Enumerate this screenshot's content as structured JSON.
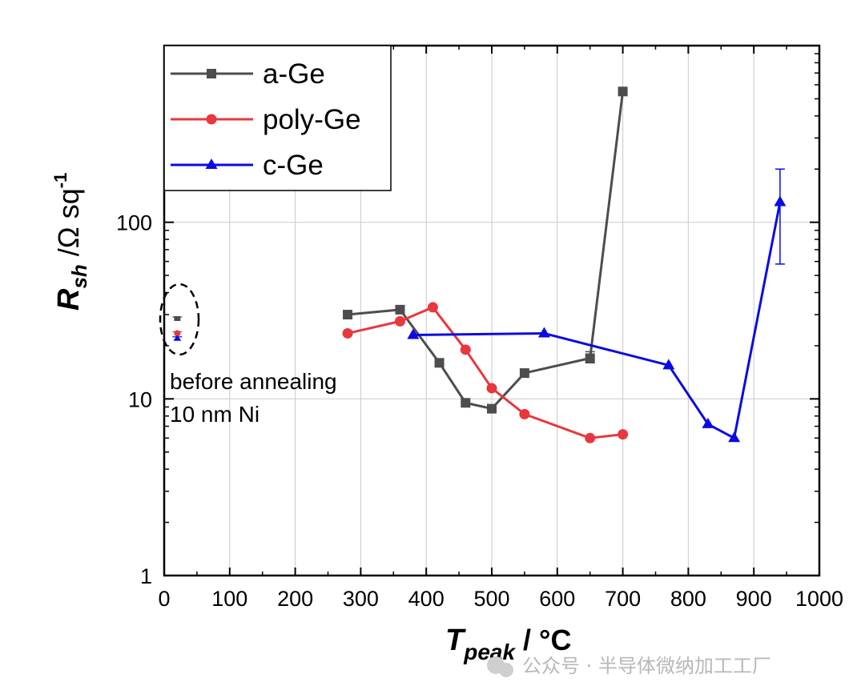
{
  "chart_data": {
    "type": "line",
    "x_axis": {
      "label_main": "T",
      "label_sub": "peak",
      "label_unit": " / °C",
      "range": [
        0,
        1000
      ],
      "ticks": [
        0,
        100,
        200,
        300,
        400,
        500,
        600,
        700,
        800,
        900,
        1000
      ]
    },
    "y_axis": {
      "label_main": "R",
      "label_sub": "sh",
      "label_unit": " /Ω sq",
      "label_exp": "-1",
      "scale": "log",
      "range": [
        1,
        1000
      ],
      "ticks": [
        1,
        10,
        100
      ],
      "tick_labels": [
        "1",
        "10",
        "100"
      ]
    },
    "grid": true,
    "legend_position": "top-left",
    "series": [
      {
        "name": "a-Ge",
        "color": "#4d4d4d",
        "marker": "square",
        "x": [
          280,
          360,
          420,
          460,
          500,
          550,
          650,
          700
        ],
        "y": [
          30,
          32,
          16,
          9.5,
          8.8,
          14,
          17,
          550
        ],
        "errors": [
          null,
          null,
          null,
          null,
          null,
          null,
          [
            16,
            18.5
          ],
          null
        ]
      },
      {
        "name": "poly-Ge",
        "color": "#e8383d",
        "marker": "circle",
        "x": [
          280,
          360,
          410,
          460,
          500,
          550,
          650,
          700
        ],
        "y": [
          23.5,
          27.5,
          33,
          19,
          11.5,
          8.2,
          6,
          6.3
        ],
        "errors": [
          null,
          null,
          null,
          null,
          null,
          null,
          null,
          null
        ]
      },
      {
        "name": "c-Ge",
        "color": "#0a0ae6",
        "marker": "triangle",
        "x": [
          380,
          580,
          770,
          830,
          870,
          940
        ],
        "y": [
          23,
          23.5,
          15.5,
          7.2,
          6,
          130
        ],
        "errors": [
          null,
          null,
          null,
          null,
          null,
          [
            58,
            200
          ]
        ]
      }
    ],
    "before_annealing_points": [
      {
        "series": "a-Ge",
        "x": 20,
        "y": 28.5,
        "color": "#4d4d4d",
        "marker": "square"
      },
      {
        "series": "poly-Ge",
        "x": 20,
        "y": 23.5,
        "color": "#e8383d",
        "marker": "circle"
      },
      {
        "series": "c-Ge",
        "x": 20,
        "y": 22,
        "color": "#0a0ae6",
        "marker": "triangle"
      }
    ],
    "annotations": [
      "before annealing",
      "10 nm Ni"
    ]
  },
  "watermark": "公众号 · 半导体微纳加工工厂"
}
